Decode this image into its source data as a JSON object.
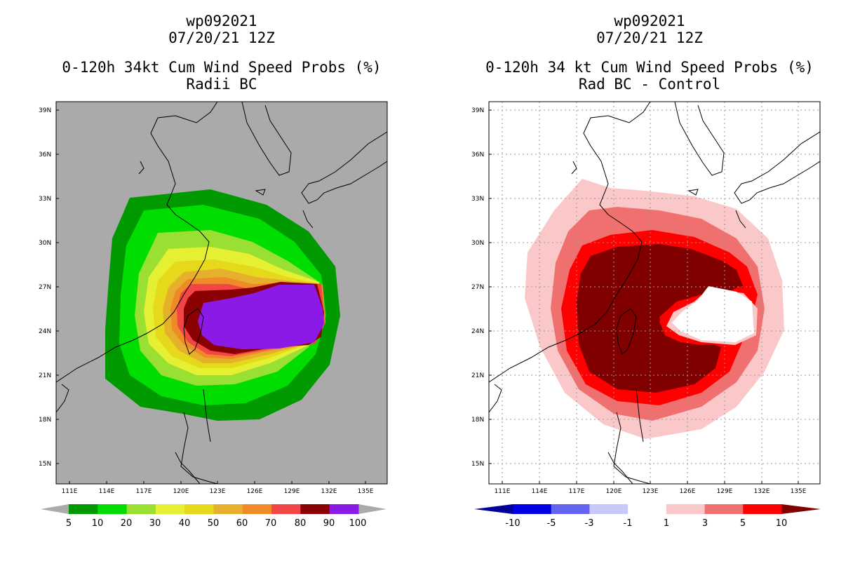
{
  "left_panel": {
    "storm_id": "wp092021",
    "date": "07/20/21 12Z",
    "title": "0-120h 34kt Cum Wind Speed Probs (%)",
    "subtitle": "Radii BC",
    "lat_labels": [
      "39N",
      "36N",
      "33N",
      "30N",
      "27N",
      "24N",
      "21N",
      "18N",
      "15N"
    ],
    "lon_labels": [
      "111E",
      "114E",
      "117E",
      "120E",
      "123E",
      "126E",
      "129E",
      "132E",
      "135E"
    ],
    "colorbar": {
      "labels": [
        "5",
        "10",
        "20",
        "30",
        "40",
        "50",
        "60",
        "70",
        "80",
        "90",
        "100"
      ],
      "colors": [
        "#009900",
        "#00dd00",
        "#99e033",
        "#e6f033",
        "#e6d81a",
        "#e6b02d",
        "#f08a28",
        "#f24545",
        "#8b0000",
        "#8c1ae6"
      ],
      "end_color": "#aaaaaa"
    },
    "background": "#aaaaaa"
  },
  "right_panel": {
    "storm_id": "wp092021",
    "date": "07/20/21 12Z",
    "title": "0-120h 34 kt Cum Wind Speed Probs (%)",
    "subtitle": "Rad BC - Control",
    "lat_labels": [
      "39N",
      "36N",
      "33N",
      "30N",
      "27N",
      "24N",
      "21N",
      "18N",
      "15N"
    ],
    "lon_labels": [
      "111E",
      "114E",
      "117E",
      "120E",
      "123E",
      "126E",
      "129E",
      "132E",
      "135E"
    ],
    "colorbar": {
      "labels": [
        "-10",
        "-5",
        "-3",
        "-1",
        "1",
        "3",
        "5",
        "10"
      ],
      "colors": [
        "#0000e6",
        "#6464f0",
        "#c8c8fa",
        "#ffffff",
        "#fac8c8",
        "#f07070",
        "#ff0000"
      ],
      "low_color": "#000099",
      "high_color": "#800000"
    },
    "background": "#ffffff"
  }
}
